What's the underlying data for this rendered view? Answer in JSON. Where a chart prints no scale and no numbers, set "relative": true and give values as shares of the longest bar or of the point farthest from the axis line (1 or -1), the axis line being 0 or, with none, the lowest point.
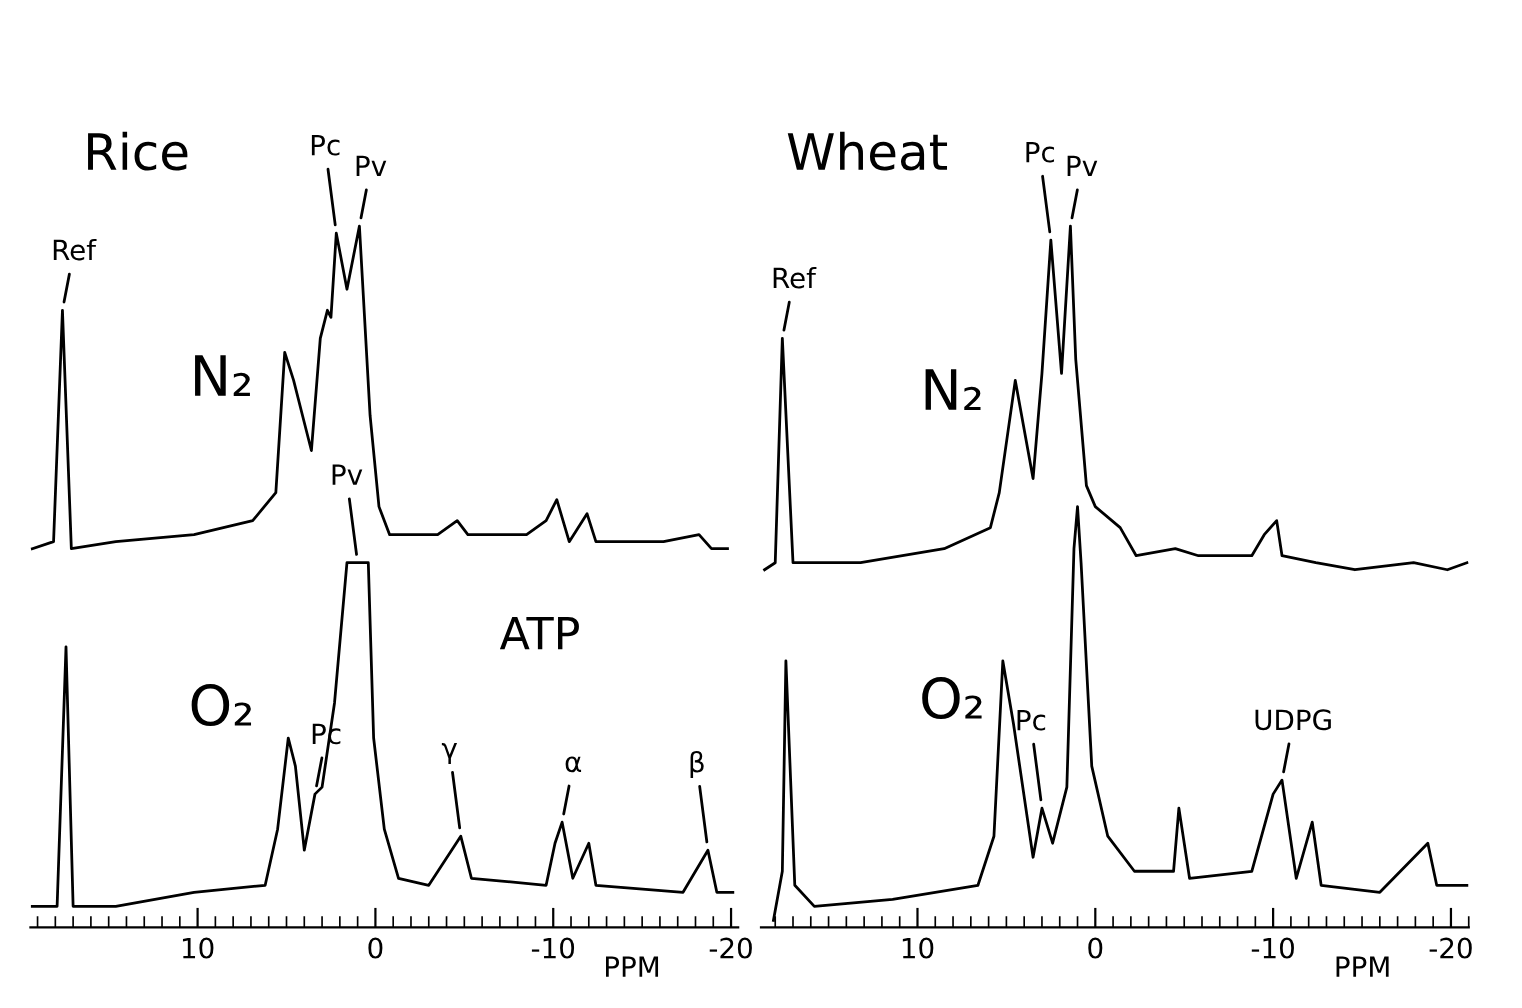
{
  "chart_data": [
    {
      "type": "line",
      "title": "Rice",
      "relative": true,
      "xlabel": "PPM",
      "xlim": [
        19.4,
        -20.4
      ],
      "xticks": [
        10,
        0,
        -10,
        -20
      ],
      "line_style": "solid",
      "series": [
        {
          "name": "N₂",
          "color": "#000000",
          "x": [
            19.3,
            18.1,
            17.6,
            17.1,
            14.6,
            10.2,
            6.9,
            5.6,
            5.1,
            4.6,
            4.1,
            3.6,
            3.1,
            2.7,
            2.5,
            2.2,
            1.6,
            0.9,
            0.3,
            -0.2,
            -0.8,
            -1.9,
            -3.5,
            -4.6,
            -5.2,
            -8.5,
            -9.6,
            -10.2,
            -10.9,
            -11.9,
            -12.4,
            -16.2,
            -18.2,
            -18.9,
            -19.8
          ],
          "values": [
            0.54,
            0.55,
            0.88,
            0.54,
            0.55,
            0.56,
            0.58,
            0.62,
            0.82,
            0.78,
            0.73,
            0.68,
            0.84,
            0.88,
            0.87,
            0.99,
            0.91,
            1.0,
            0.73,
            0.6,
            0.56,
            0.56,
            0.56,
            0.58,
            0.56,
            0.56,
            0.58,
            0.61,
            0.55,
            0.59,
            0.55,
            0.55,
            0.56,
            0.54,
            0.54
          ]
        },
        {
          "name": "O₂",
          "color": "#000000",
          "x": [
            19.3,
            17.9,
            17.4,
            17.0,
            14.6,
            10.2,
            6.2,
            5.5,
            4.9,
            4.5,
            4.0,
            3.4,
            3.0,
            2.3,
            1.6,
            0.4,
            0.1,
            -0.5,
            -1.3,
            -3.0,
            -4.8,
            -5.4,
            -9.6,
            -10.1,
            -10.5,
            -11.1,
            -12.0,
            -12.4,
            -17.3,
            -18.7,
            -19.2,
            -20.1
          ],
          "values": [
            0.03,
            0.03,
            0.4,
            0.03,
            0.03,
            0.05,
            0.06,
            0.14,
            0.27,
            0.23,
            0.11,
            0.19,
            0.2,
            0.32,
            0.52,
            0.52,
            0.27,
            0.14,
            0.07,
            0.06,
            0.13,
            0.07,
            0.06,
            0.12,
            0.15,
            0.07,
            0.12,
            0.06,
            0.05,
            0.11,
            0.05,
            0.05
          ]
        }
      ],
      "annotations": [
        {
          "text": "Ref",
          "x": 17.6,
          "y": 0.88
        },
        {
          "text": "Pc",
          "x": 2.2,
          "y": 0.99
        },
        {
          "text": "Pv",
          "x": 0.9,
          "y": 1.0
        },
        {
          "text": "Pv",
          "x": 1.0,
          "y": 0.52
        },
        {
          "text": "Pc",
          "x": 3.4,
          "y": 0.19
        },
        {
          "text": "γ",
          "x": -4.8,
          "y": 0.13
        },
        {
          "text": "α",
          "x": -10.5,
          "y": 0.15
        },
        {
          "text": "β",
          "x": -18.7,
          "y": 0.11
        },
        "ATP"
      ]
    },
    {
      "type": "line",
      "title": "Wheat",
      "relative": true,
      "xlabel": "PPM",
      "xlim": [
        18.8,
        -21.0
      ],
      "xticks": [
        10,
        0,
        -10,
        -20
      ],
      "line_style": "solid",
      "series": [
        {
          "name": "N₂",
          "color": "#000000",
          "x": [
            18.6,
            18.0,
            17.6,
            17.0,
            13.2,
            8.5,
            5.9,
            5.4,
            4.5,
            3.5,
            3.0,
            2.5,
            1.9,
            1.4,
            1.1,
            0.5,
            0.0,
            -1.4,
            -2.3,
            -4.5,
            -5.8,
            -8.8,
            -9.5,
            -10.2,
            -10.5,
            -12.4,
            -14.6,
            -17.9,
            -19.8,
            -20.9
          ],
          "values": [
            0.51,
            0.52,
            0.84,
            0.52,
            0.52,
            0.54,
            0.57,
            0.62,
            0.78,
            0.64,
            0.79,
            0.98,
            0.79,
            1.0,
            0.81,
            0.63,
            0.6,
            0.57,
            0.53,
            0.54,
            0.53,
            0.53,
            0.56,
            0.58,
            0.53,
            0.52,
            0.51,
            0.52,
            0.51,
            0.52
          ]
        },
        {
          "name": "O₂",
          "color": "#000000",
          "x": [
            18.1,
            17.6,
            17.4,
            16.9,
            15.8,
            11.4,
            6.6,
            5.7,
            5.2,
            4.6,
            3.5,
            3.0,
            2.4,
            1.6,
            1.2,
            1.0,
            0.8,
            0.2,
            -0.7,
            -2.2,
            -4.4,
            -4.7,
            -5.3,
            -8.8,
            -10.0,
            -10.5,
            -11.3,
            -12.2,
            -12.7,
            -16.0,
            -18.7,
            -19.2,
            -20.9
          ],
          "values": [
            0.01,
            0.08,
            0.38,
            0.06,
            0.03,
            0.04,
            0.06,
            0.13,
            0.38,
            0.29,
            0.1,
            0.17,
            0.12,
            0.2,
            0.54,
            0.6,
            0.52,
            0.23,
            0.13,
            0.08,
            0.08,
            0.17,
            0.07,
            0.08,
            0.19,
            0.21,
            0.07,
            0.15,
            0.06,
            0.05,
            0.12,
            0.06,
            0.06
          ]
        }
      ],
      "annotations": [
        {
          "text": "Ref",
          "x": 17.6,
          "y": 0.84
        },
        {
          "text": "Pc",
          "x": 2.5,
          "y": 0.98
        },
        {
          "text": "Pv",
          "x": 1.4,
          "y": 1.0
        },
        {
          "text": "Pc",
          "x": 3.0,
          "y": 0.17
        },
        {
          "text": "UDPG",
          "x": -10.5,
          "y": 0.21
        }
      ]
    }
  ]
}
